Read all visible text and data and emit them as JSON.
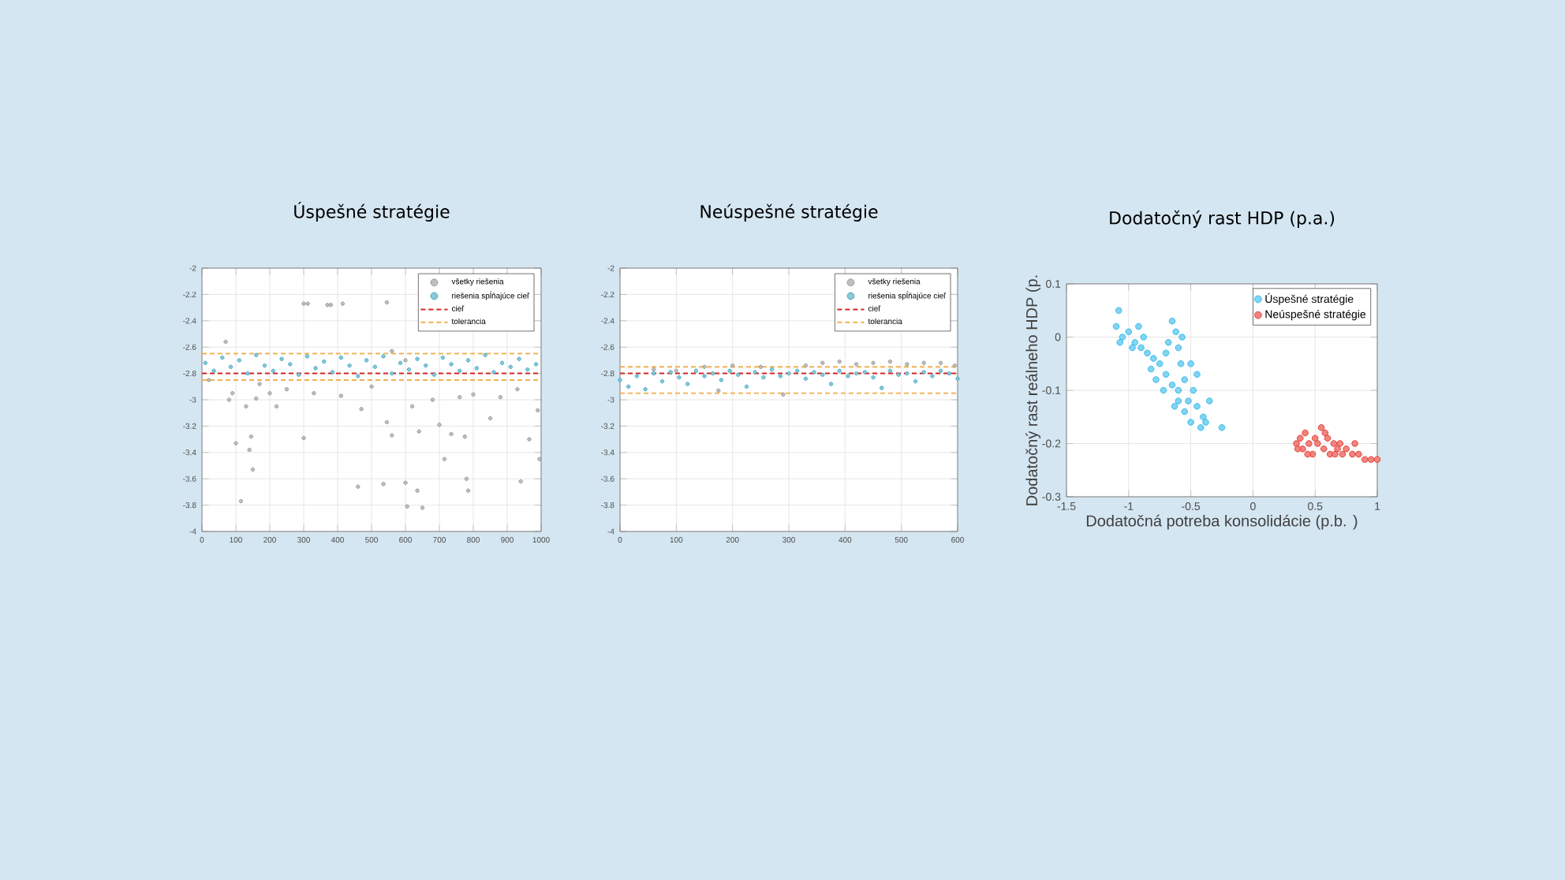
{
  "chart_data": [
    {
      "type": "scatter",
      "title": "Úspešné stratégie",
      "xlim": [
        0,
        1000
      ],
      "xticks": [
        0,
        100,
        200,
        300,
        400,
        500,
        600,
        700,
        800,
        900,
        1000
      ],
      "ylim": [
        -4,
        -2
      ],
      "yticks": [
        -4,
        -3.8,
        -3.6,
        -3.4,
        -3.2,
        -3,
        -2.8,
        -2.6,
        -2.4,
        -2.2,
        -2
      ],
      "grid": true,
      "legend": "top right",
      "marker": "circle",
      "series": [
        {
          "name": "všetky riešenia",
          "color": "#8a8a8a",
          "x": [
            300,
            312,
            370,
            380,
            415,
            545,
            70,
            100,
            115,
            140,
            145,
            150,
            300,
            460,
            535,
            545,
            560,
            600,
            605,
            635,
            640,
            650,
            700,
            715,
            735,
            775,
            780,
            785,
            850,
            940,
            965,
            995,
            990,
            80,
            90,
            130,
            160,
            200,
            220,
            250,
            330,
            410,
            470,
            500,
            620,
            680,
            760,
            800,
            880,
            930,
            20,
            170,
            560,
            600
          ],
          "values": [
            -2.27,
            -2.27,
            -2.28,
            -2.28,
            -2.27,
            -2.26,
            -2.56,
            -3.33,
            -3.77,
            -3.38,
            -3.28,
            -3.53,
            -3.29,
            -3.66,
            -3.64,
            -3.17,
            -3.27,
            -3.63,
            -3.81,
            -3.69,
            -3.24,
            -3.82,
            -3.19,
            -3.45,
            -3.26,
            -3.28,
            -3.6,
            -3.69,
            -3.14,
            -3.62,
            -3.3,
            -3.45,
            -3.08,
            -3.0,
            -2.95,
            -3.05,
            -2.99,
            -2.95,
            -3.05,
            -2.92,
            -2.95,
            -2.97,
            -3.07,
            -2.9,
            -3.05,
            -3.0,
            -2.98,
            -2.96,
            -2.98,
            -2.92,
            -2.85,
            -2.88,
            -2.63,
            -2.7
          ]
        },
        {
          "name": "riešenia spĺňajúce cieľ",
          "color": "#2a9dbb",
          "x": [
            10,
            35,
            60,
            85,
            110,
            135,
            160,
            185,
            210,
            235,
            260,
            285,
            310,
            335,
            360,
            385,
            410,
            435,
            460,
            485,
            510,
            535,
            560,
            585,
            610,
            635,
            660,
            685,
            710,
            735,
            760,
            785,
            810,
            835,
            860,
            885,
            910,
            935,
            960,
            985
          ],
          "values": [
            -2.72,
            -2.78,
            -2.68,
            -2.75,
            -2.7,
            -2.8,
            -2.66,
            -2.74,
            -2.78,
            -2.69,
            -2.73,
            -2.81,
            -2.67,
            -2.76,
            -2.71,
            -2.79,
            -2.68,
            -2.74,
            -2.82,
            -2.7,
            -2.75,
            -2.67,
            -2.8,
            -2.72,
            -2.77,
            -2.69,
            -2.74,
            -2.81,
            -2.68,
            -2.73,
            -2.78,
            -2.7,
            -2.76,
            -2.66,
            -2.79,
            -2.72,
            -2.75,
            -2.69,
            -2.77,
            -2.73
          ]
        }
      ],
      "ref_lines": [
        {
          "axis": "y",
          "value": -2.8,
          "label": "cieľ",
          "color": "#d62728",
          "line_style": "dashed"
        },
        {
          "axis": "y",
          "value": -2.65,
          "label": "tolerancia",
          "color": "#f0b050",
          "line_style": "dashed"
        },
        {
          "axis": "y",
          "value": -2.85,
          "color": "#f0b050",
          "line_style": "dashed"
        }
      ]
    },
    {
      "type": "scatter",
      "title": "Neúspešné stratégie",
      "xlim": [
        0,
        600
      ],
      "xticks": [
        0,
        100,
        200,
        300,
        400,
        500,
        600
      ],
      "ylim": [
        -4,
        -2
      ],
      "yticks": [
        -4,
        -3.8,
        -3.6,
        -3.4,
        -3.2,
        -3,
        -2.8,
        -2.6,
        -2.4,
        -2.2,
        -2
      ],
      "grid": true,
      "legend": "top right",
      "marker": "circle",
      "series": [
        {
          "name": "všetky riešenia",
          "color": "#8a8a8a",
          "x": [
            330,
            360,
            390,
            420,
            450,
            480,
            510,
            540,
            570,
            595,
            150,
            200,
            250,
            60,
            175,
            290,
            100
          ],
          "values": [
            -2.74,
            -2.72,
            -2.71,
            -2.73,
            -2.72,
            -2.71,
            -2.73,
            -2.72,
            -2.72,
            -2.74,
            -2.75,
            -2.74,
            -2.75,
            -2.77,
            -2.93,
            -2.96,
            -2.78
          ]
        },
        {
          "name": "riešenia spĺňajúce cieľ",
          "color": "#2a9dbb",
          "x": [
            0,
            15,
            30,
            45,
            60,
            75,
            90,
            105,
            120,
            135,
            150,
            165,
            180,
            195,
            210,
            225,
            240,
            255,
            270,
            285,
            300,
            315,
            330,
            345,
            360,
            375,
            390,
            405,
            420,
            435,
            450,
            465,
            480,
            495,
            510,
            525,
            540,
            555,
            570,
            585,
            600
          ],
          "values": [
            -2.85,
            -2.9,
            -2.82,
            -2.92,
            -2.8,
            -2.86,
            -2.79,
            -2.83,
            -2.88,
            -2.78,
            -2.82,
            -2.8,
            -2.85,
            -2.78,
            -2.81,
            -2.9,
            -2.79,
            -2.83,
            -2.77,
            -2.82,
            -2.8,
            -2.78,
            -2.84,
            -2.79,
            -2.81,
            -2.88,
            -2.78,
            -2.82,
            -2.8,
            -2.79,
            -2.83,
            -2.91,
            -2.78,
            -2.81,
            -2.8,
            -2.86,
            -2.79,
            -2.82,
            -2.78,
            -2.8,
            -2.84
          ]
        }
      ],
      "ref_lines": [
        {
          "axis": "y",
          "value": -2.8,
          "label": "cieľ",
          "color": "#d62728",
          "line_style": "dashed"
        },
        {
          "axis": "y",
          "value": -2.75,
          "label": "tolerancia",
          "color": "#f0b050",
          "line_style": "dashed"
        },
        {
          "axis": "y",
          "value": -2.95,
          "color": "#f0b050",
          "line_style": "dashed"
        }
      ]
    },
    {
      "type": "scatter",
      "title": "Dodatočný rast HDP (p.a.)",
      "xlabel": "Dodatočná potreba konsolidácie (p.b. )",
      "ylabel": "Dodatočný rast reálneho HDP (p.",
      "xlim": [
        -1.5,
        1
      ],
      "xticks": [
        -1.5,
        -1,
        -0.5,
        0,
        0.5,
        1
      ],
      "ylim": [
        -0.3,
        0.1
      ],
      "yticks": [
        -0.3,
        -0.2,
        -0.1,
        0,
        0.1
      ],
      "grid": true,
      "legend": "top right",
      "marker": "circle",
      "series": [
        {
          "name": "Úspešné stratégie",
          "color": "#1ab0e8",
          "x": [
            -1.08,
            -1.1,
            -1.05,
            -1.07,
            -1.0,
            -0.95,
            -0.92,
            -0.9,
            -0.85,
            -0.8,
            -0.82,
            -0.75,
            -0.78,
            -0.7,
            -0.72,
            -0.65,
            -0.62,
            -0.6,
            -0.58,
            -0.65,
            -0.6,
            -0.55,
            -0.5,
            -0.48,
            -0.52,
            -0.45,
            -0.55,
            -0.6,
            -0.5,
            -0.42,
            -0.38,
            -0.35,
            -0.25,
            -0.68,
            -0.88,
            -0.97,
            -0.7,
            -0.45,
            -0.4,
            -0.63,
            -0.57
          ],
          "values": [
            0.05,
            0.02,
            0.0,
            -0.01,
            0.01,
            -0.01,
            0.02,
            -0.02,
            -0.03,
            -0.04,
            -0.06,
            -0.05,
            -0.08,
            -0.07,
            -0.1,
            0.03,
            0.01,
            -0.02,
            -0.05,
            -0.09,
            -0.1,
            -0.08,
            -0.05,
            -0.1,
            -0.12,
            -0.13,
            -0.14,
            -0.12,
            -0.16,
            -0.17,
            -0.16,
            -0.12,
            -0.17,
            -0.01,
            0.0,
            -0.02,
            -0.03,
            -0.07,
            -0.15,
            -0.13,
            0.0
          ]
        },
        {
          "name": "Neúspešné stratégie",
          "color": "#e32219",
          "x": [
            0.35,
            0.38,
            0.4,
            0.42,
            0.45,
            0.48,
            0.5,
            0.52,
            0.55,
            0.57,
            0.6,
            0.62,
            0.65,
            0.68,
            0.7,
            0.72,
            0.75,
            0.82,
            0.8,
            0.85,
            0.9,
            0.95,
            1.0,
            0.44,
            0.58,
            0.66,
            0.36
          ],
          "values": [
            -0.2,
            -0.19,
            -0.21,
            -0.18,
            -0.2,
            -0.22,
            -0.19,
            -0.2,
            -0.17,
            -0.21,
            -0.19,
            -0.22,
            -0.2,
            -0.21,
            -0.2,
            -0.22,
            -0.21,
            -0.2,
            -0.22,
            -0.22,
            -0.23,
            -0.23,
            -0.23,
            -0.22,
            -0.18,
            -0.22,
            -0.21
          ]
        }
      ]
    }
  ]
}
